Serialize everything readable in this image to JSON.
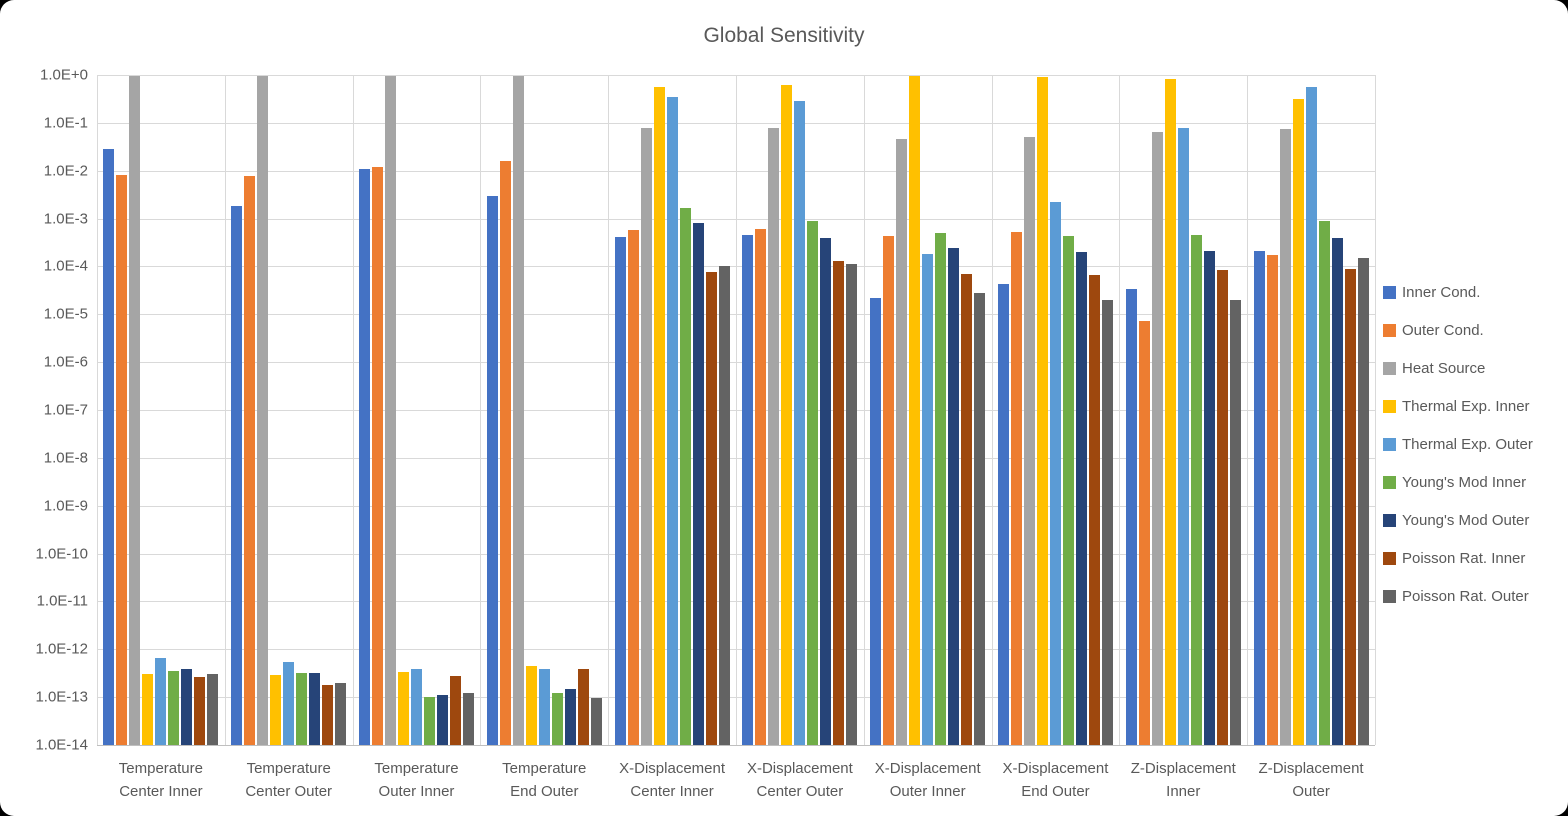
{
  "title": "Global Sensitivity",
  "colors": {
    "text": "#595959",
    "gridline": "#D9D9D9",
    "axis_line": "#BFBFBF",
    "background": "#FFFFFF"
  },
  "chart_data": {
    "type": "bar",
    "title": "Global Sensitivity",
    "y_scale": "log",
    "ylim": [
      1e-14,
      1.0
    ],
    "grid": true,
    "legend_position": "right",
    "xlabel": "",
    "ylabel": "",
    "ytick_labels": [
      "1.0E+0",
      "1.0E-1",
      "1.0E-2",
      "1.0E-3",
      "1.0E-4",
      "1.0E-5",
      "1.0E-6",
      "1.0E-7",
      "1.0E-8",
      "1.0E-9",
      "1.0E-10",
      "1.0E-11",
      "1.0E-12",
      "1.0E-13",
      "1.0E-14"
    ],
    "categories": [
      "Temperature\nCenter Inner",
      "Temperature\nCenter Outer",
      "Temperature\nOuter Inner",
      "Temperature\nEnd Outer",
      "X-Displacement\nCenter Inner",
      "X-Displacement\nCenter Outer",
      "X-Displacement\nOuter Inner",
      "X-Displacement\nEnd Outer",
      "Z-Displacement\nInner",
      "Z-Displacement\nOuter"
    ],
    "series": [
      {
        "name": "Inner Cond.",
        "color": "#4472C4",
        "values": [
          0.028,
          0.0018,
          0.011,
          0.0029,
          0.00042,
          0.00046,
          2.2e-05,
          4.2e-05,
          3.4e-05,
          0.00021
        ]
      },
      {
        "name": "Outer Cond.",
        "color": "#ED7D31",
        "values": [
          0.0082,
          0.0078,
          0.012,
          0.016,
          0.00058,
          0.0006,
          0.00044,
          0.00052,
          7.2e-06,
          0.00017
        ]
      },
      {
        "name": "Heat Source",
        "color": "#A5A5A5",
        "values": [
          0.95,
          0.95,
          0.96,
          0.96,
          0.079,
          0.078,
          0.047,
          0.05,
          0.063,
          0.076
        ]
      },
      {
        "name": "Thermal Exp. Inner",
        "color": "#FFC000",
        "values": [
          3e-13,
          2.9e-13,
          3.4e-13,
          4.4e-13,
          0.56,
          0.62,
          0.94,
          0.91,
          0.82,
          0.32
        ]
      },
      {
        "name": "Thermal Exp. Outer",
        "color": "#5B9BD5",
        "values": [
          6.6e-13,
          5.4e-13,
          3.9e-13,
          3.8e-13,
          0.35,
          0.29,
          0.00018,
          0.0022,
          0.079,
          0.56
        ]
      },
      {
        "name": "Young's Mod Inner",
        "color": "#70AD47",
        "values": [
          3.5e-13,
          3.2e-13,
          1e-13,
          1.2e-13,
          0.0017,
          0.00088,
          0.00051,
          0.00044,
          0.00046,
          0.00088
        ]
      },
      {
        "name": "Young's Mod Outer",
        "color": "#264478",
        "values": [
          3.9e-13,
          3.2e-13,
          1.1e-13,
          1.5e-13,
          0.00082,
          0.0004,
          0.00024,
          0.0002,
          0.00021,
          0.0004
        ]
      },
      {
        "name": "Poisson Rat. Inner",
        "color": "#9E480E",
        "values": [
          2.7e-13,
          1.8e-13,
          2.8e-13,
          3.8e-13,
          7.8e-05,
          0.00013,
          6.8e-05,
          6.5e-05,
          8.3e-05,
          9e-05
        ]
      },
      {
        "name": "Poisson Rat. Outer",
        "color": "#636363",
        "values": [
          3.1e-13,
          2e-13,
          1.2e-13,
          9.5e-14,
          0.0001,
          0.00011,
          2.8e-05,
          2e-05,
          2e-05,
          0.00015
        ]
      }
    ]
  }
}
